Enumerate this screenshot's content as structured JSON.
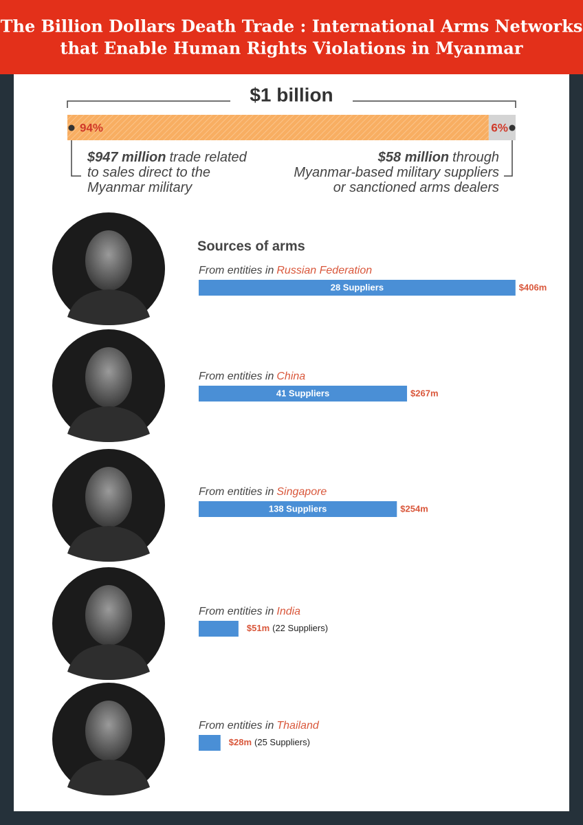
{
  "title": [
    "The Billion Dollars Death Trade : International Arms Networks",
    "that Enable Human Rights Violations in Myanmar"
  ],
  "chart_data": [
    {
      "type": "stacked-bar",
      "title": "$1 billion",
      "values": [
        94,
        6
      ],
      "value_labels": [
        "94%",
        "6%"
      ],
      "colors": [
        "#f8ae62",
        "#d4d4d4"
      ],
      "annotations": [
        {
          "bold": "$947 million",
          "lines": [
            "trade related",
            "to sales direct to the",
            "Myanmar military"
          ]
        },
        {
          "bold": "$58 million",
          "lines": [
            "through",
            "Myanmar-based military suppliers",
            "or sanctioned arms dealers"
          ]
        }
      ]
    },
    {
      "type": "bar",
      "title": "Sources of arms",
      "category_prefix": "From entities in",
      "categories": [
        "Russian Federation",
        "China",
        "Singapore",
        "India",
        "Thailand"
      ],
      "values": [
        406,
        267,
        254,
        51,
        28
      ],
      "value_labels": [
        "$406m",
        "$267m",
        "$254m",
        "$51m",
        "$28m"
      ],
      "supplier_labels": [
        "28 Suppliers",
        "41 Suppliers",
        "138 Suppliers",
        "(22 Suppliers)",
        "(25 Suppliers)"
      ],
      "color": "#4a8fd6",
      "highlight_color": "#d9573b"
    }
  ]
}
